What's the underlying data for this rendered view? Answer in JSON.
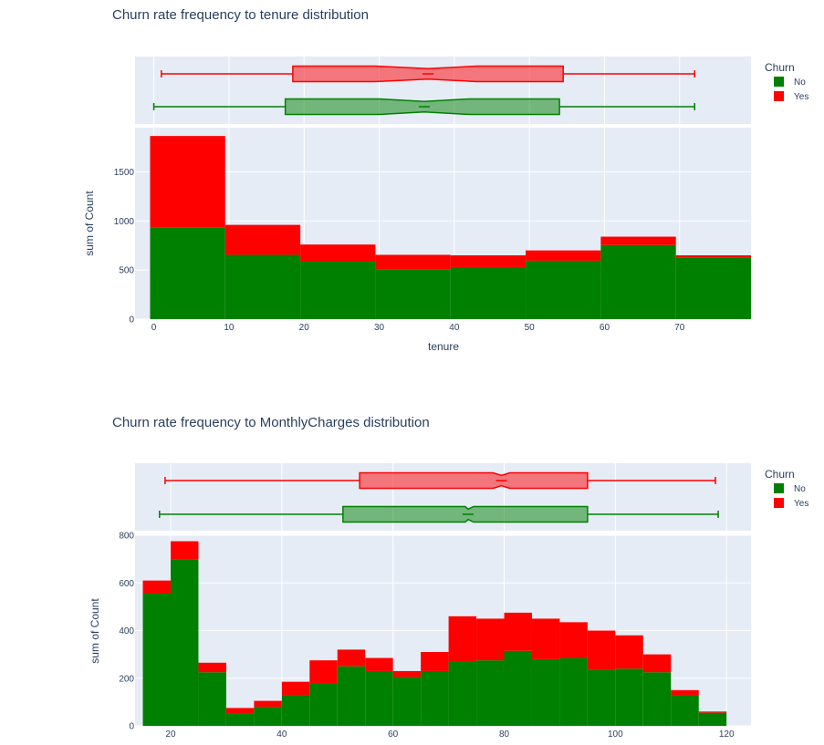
{
  "colors": {
    "No": "#008000",
    "Yes": "#ff0000",
    "plot_bg": "#e5ecf6",
    "grid": "#ffffff"
  },
  "chart_data": [
    {
      "type": "bar",
      "barmode": "stack",
      "title": "Churn rate frequency to tenure distribution",
      "xlabel": "tenure",
      "ylabel": "sum of Count",
      "x_ticks": [
        0,
        10,
        20,
        30,
        40,
        50,
        60,
        70
      ],
      "y_ticks": [
        0,
        500,
        1000,
        1500
      ],
      "xlim": [
        -2.5,
        79.5
      ],
      "ylim": [
        0,
        1950
      ],
      "bin_edges": [
        -0.5,
        9.5,
        19.5,
        29.5,
        39.5,
        49.5,
        59.5,
        69.5,
        79.5
      ],
      "series": [
        {
          "name": "No",
          "values": [
            930,
            655,
            585,
            505,
            530,
            595,
            755,
            630
          ]
        },
        {
          "name": "Yes",
          "values": [
            935,
            305,
            175,
            150,
            120,
            105,
            85,
            20
          ]
        }
      ],
      "legend": {
        "title": "Churn",
        "position": "top-right"
      },
      "box": {
        "No": {
          "min": 0,
          "q1": 17.5,
          "median": 36,
          "q3": 54,
          "max": 72,
          "notch_low": 30,
          "notch_high": 42
        },
        "Yes": {
          "min": 1,
          "q1": 18.5,
          "median": 36.5,
          "q3": 54.5,
          "max": 72,
          "notch_low": 29.5,
          "notch_high": 43
        }
      }
    },
    {
      "type": "bar",
      "barmode": "stack",
      "title": "Churn rate frequency to MonthlyCharges distribution",
      "xlabel": "",
      "ylabel": "sum of Count",
      "x_ticks": [
        20,
        40,
        60,
        80,
        100,
        120
      ],
      "y_ticks": [
        0,
        200,
        400,
        600,
        800
      ],
      "xlim": [
        13.6,
        124.4
      ],
      "ylim": [
        0,
        800
      ],
      "bin_edges": [
        15,
        20,
        25,
        30,
        35,
        40,
        45,
        50,
        55,
        60,
        65,
        70,
        75,
        80,
        85,
        90,
        95,
        100,
        105,
        110,
        115,
        120
      ],
      "series": [
        {
          "name": "No",
          "values": [
            555,
            700,
            225,
            50,
            80,
            130,
            180,
            250,
            230,
            205,
            230,
            270,
            275,
            315,
            280,
            285,
            235,
            240,
            225,
            130,
            55
          ]
        },
        {
          "name": "Yes",
          "values": [
            55,
            75,
            40,
            25,
            25,
            55,
            95,
            70,
            55,
            25,
            80,
            190,
            175,
            160,
            170,
            150,
            165,
            140,
            75,
            20,
            5
          ]
        }
      ],
      "legend": {
        "title": "Churn",
        "position": "top-right"
      },
      "box": {
        "No": {
          "min": 18,
          "q1": 51,
          "median": 73.5,
          "q3": 95,
          "max": 118.5,
          "notch_low": 73,
          "notch_high": 74.5
        },
        "Yes": {
          "min": 19,
          "q1": 54,
          "median": 79.5,
          "q3": 95,
          "max": 118,
          "notch_low": 78,
          "notch_high": 81
        }
      }
    }
  ]
}
